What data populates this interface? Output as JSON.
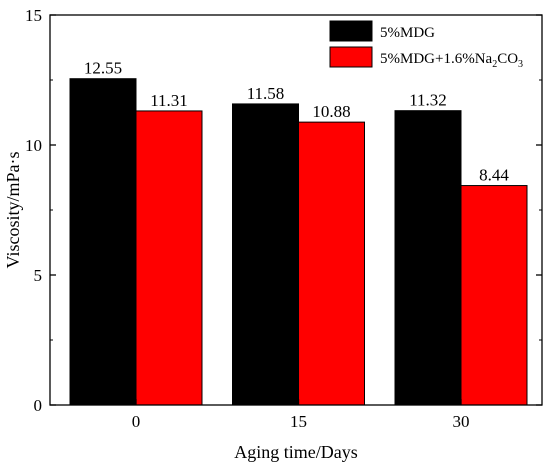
{
  "chart_data": {
    "type": "bar",
    "title": "",
    "xlabel": "Aging time/Days",
    "ylabel": "Viscosity/mPa·s",
    "categories": [
      "0",
      "15",
      "30"
    ],
    "ylim": [
      0,
      15
    ],
    "yticks": [
      0,
      5,
      10,
      15
    ],
    "series": [
      {
        "name": "5%MDG",
        "color": "#000000",
        "values": [
          12.55,
          11.58,
          11.32
        ],
        "labels": [
          "12.55",
          "11.58",
          "11.32"
        ]
      },
      {
        "name": "5%MDG+1.6%Na2CO3",
        "color": "#ff0000",
        "values": [
          11.31,
          10.88,
          8.44
        ],
        "labels": [
          "11.31",
          "10.88",
          "8.44"
        ]
      }
    ],
    "legend": {
      "position": "top-right",
      "entries": [
        {
          "prefix": "5%MDG",
          "sub1": "",
          "mid": "",
          "sub2": "",
          "suffix": ""
        },
        {
          "prefix": "5%MDG+1.6%Na",
          "sub1": "2",
          "mid": "CO",
          "sub2": "3",
          "suffix": ""
        }
      ]
    },
    "grid": false
  }
}
